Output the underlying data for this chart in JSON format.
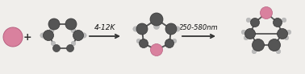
{
  "bg_color": "#f0eeeb",
  "arrow1_label": "4-12K",
  "arrow2_label": "250-580nm",
  "pink": "#d9819e",
  "dark_gray": "#555555",
  "mid_gray": "#888888",
  "light_gray": "#bbbbbb",
  "bond_color": "#555555",
  "arrow_color": "#333333",
  "pink_ec": "#b86080",
  "dg_ec": "#333333"
}
